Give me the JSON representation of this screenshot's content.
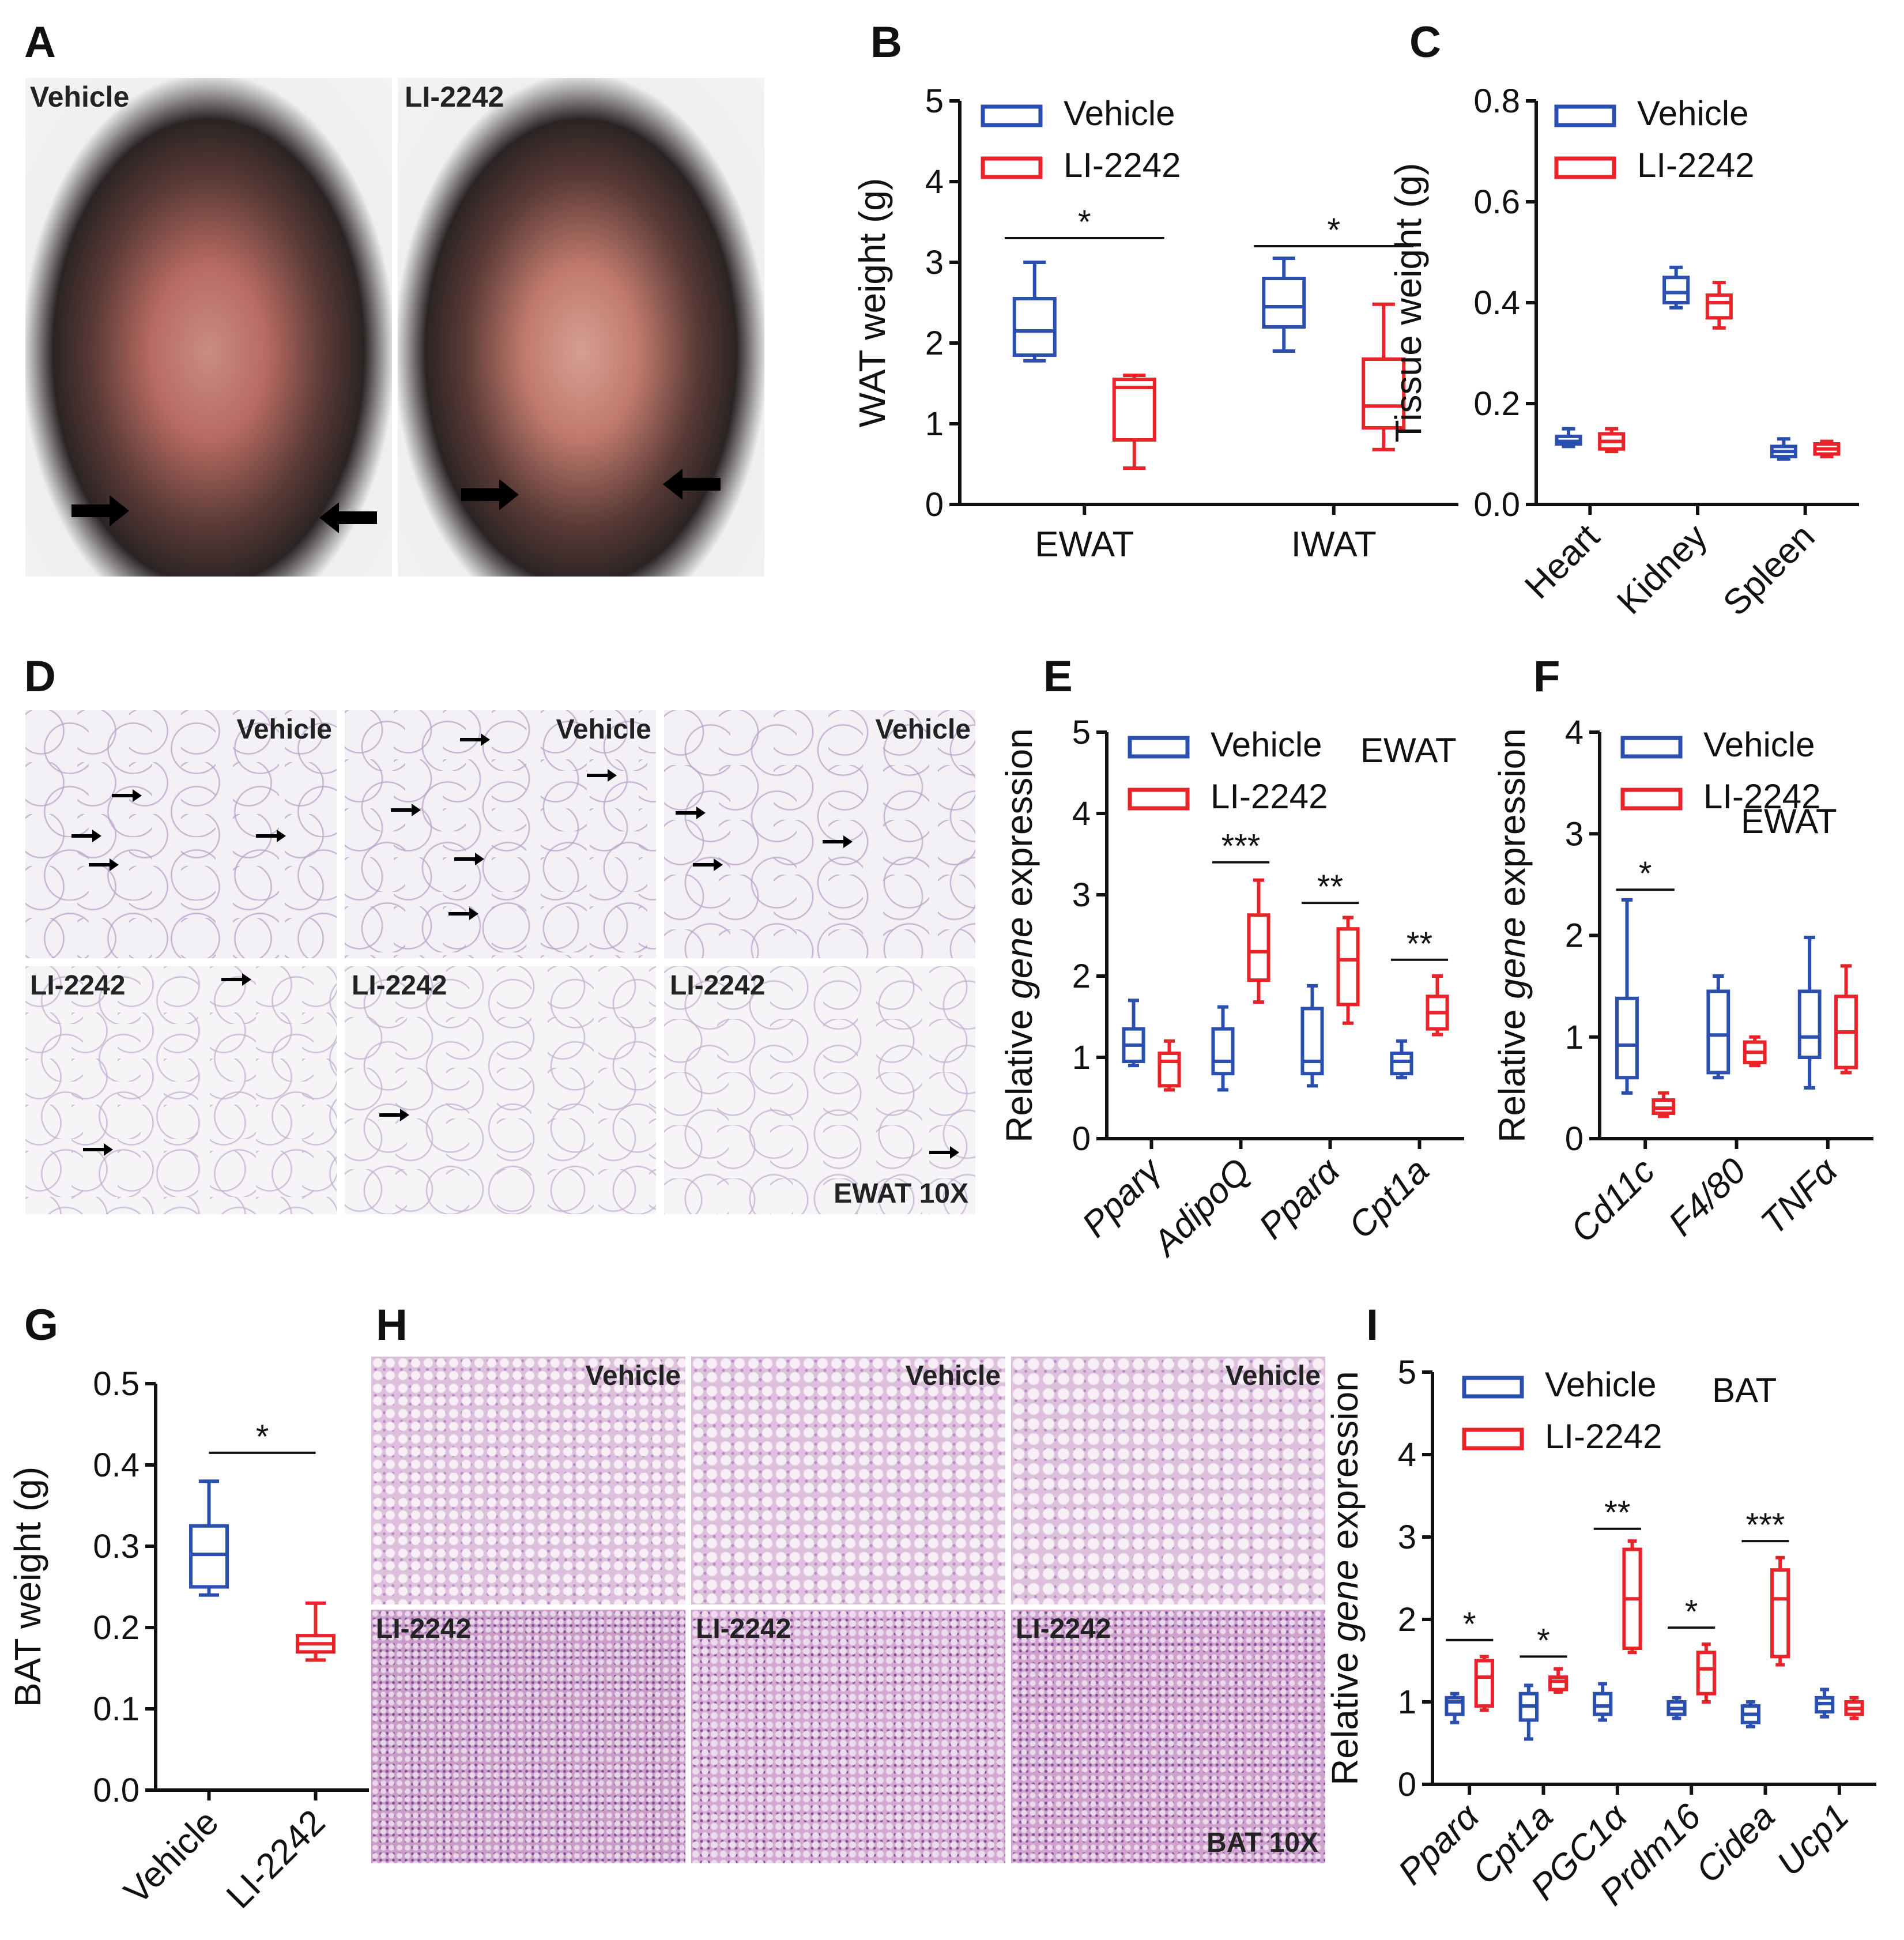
{
  "colors": {
    "vehicle": "#2a4fae",
    "li2242": "#e8232a",
    "axis": "#111111"
  },
  "panel_letters": {
    "a": "A",
    "b": "B",
    "c": "C",
    "d": "D",
    "e": "E",
    "f": "F",
    "g": "G",
    "h": "H",
    "i": "I"
  },
  "panelA": {
    "left_label": "Vehicle",
    "right_label": "LI-2242"
  },
  "panelD": {
    "top_labels": [
      "Vehicle",
      "Vehicle",
      "Vehicle"
    ],
    "bottom_labels": [
      "LI-2242",
      "LI-2242",
      "LI-2242"
    ],
    "scale_label": "EWAT 10X"
  },
  "panelH": {
    "top_labels": [
      "Vehicle",
      "Vehicle",
      "Vehicle"
    ],
    "bottom_labels": [
      "LI-2242",
      "LI-2242",
      "LI-2242"
    ],
    "scale_label": "BAT 10X"
  },
  "chart_data": [
    {
      "id": "B",
      "type": "boxplot",
      "ylabel": "WAT weight (g)",
      "ylim": [
        0,
        5
      ],
      "yticks": [
        "0",
        "1",
        "2",
        "3",
        "4",
        "5"
      ],
      "categories": [
        "EWAT",
        "IWAT"
      ],
      "legend": [
        "Vehicle",
        "LI-2242"
      ],
      "note": "",
      "series": [
        {
          "name": "Vehicle",
          "boxes": [
            [
              1.78,
              1.85,
              2.15,
              2.55,
              3.0
            ],
            [
              1.9,
              2.2,
              2.45,
              2.8,
              3.05
            ]
          ]
        },
        {
          "name": "LI-2242",
          "boxes": [
            [
              0.45,
              0.8,
              1.45,
              1.55,
              1.6
            ],
            [
              0.68,
              0.95,
              1.22,
              1.8,
              2.48
            ]
          ]
        }
      ],
      "sig": [
        {
          "cat": 0,
          "label": "*",
          "y": 3.3
        },
        {
          "cat": 1,
          "label": "*",
          "y": 3.2
        }
      ]
    },
    {
      "id": "C",
      "type": "boxplot",
      "ylabel": "Tissue weight (g)",
      "ylim": [
        0,
        0.8
      ],
      "yticks": [
        "0.0",
        "0.2",
        "0.4",
        "0.6",
        "0.8"
      ],
      "categories": [
        "Heart",
        "Kidney",
        "Spleen"
      ],
      "legend": [
        "Vehicle",
        "LI-2242"
      ],
      "note": "",
      "series": [
        {
          "name": "Vehicle",
          "boxes": [
            [
              0.115,
              0.12,
              0.125,
              0.135,
              0.15
            ],
            [
              0.39,
              0.4,
              0.42,
              0.45,
              0.47
            ],
            [
              0.09,
              0.095,
              0.105,
              0.115,
              0.13
            ]
          ]
        },
        {
          "name": "LI-2242",
          "boxes": [
            [
              0.105,
              0.11,
              0.125,
              0.14,
              0.15
            ],
            [
              0.35,
              0.37,
              0.4,
              0.415,
              0.44
            ],
            [
              0.095,
              0.1,
              0.11,
              0.12,
              0.125
            ]
          ]
        }
      ],
      "sig": []
    },
    {
      "id": "E",
      "type": "boxplot",
      "ylabel_parts": [
        "Relative ",
        "gene",
        " expression"
      ],
      "ylim": [
        0,
        5
      ],
      "yticks": [
        "0",
        "1",
        "2",
        "3",
        "4",
        "5"
      ],
      "categories": [
        "Pparγ",
        "AdipoQ",
        "Pparα",
        "Cpt1a"
      ],
      "italic_categories": true,
      "legend": [
        "Vehicle",
        "LI-2242"
      ],
      "note": "EWAT",
      "series": [
        {
          "name": "Vehicle",
          "boxes": [
            [
              0.9,
              0.95,
              1.15,
              1.35,
              1.7
            ],
            [
              0.6,
              0.8,
              0.95,
              1.35,
              1.62
            ],
            [
              0.65,
              0.8,
              0.95,
              1.6,
              1.88
            ],
            [
              0.75,
              0.8,
              0.95,
              1.05,
              1.2
            ]
          ]
        },
        {
          "name": "LI-2242",
          "boxes": [
            [
              0.6,
              0.65,
              0.95,
              1.05,
              1.2
            ],
            [
              1.68,
              1.95,
              2.3,
              2.75,
              3.18
            ],
            [
              1.42,
              1.65,
              2.2,
              2.58,
              2.72
            ],
            [
              1.28,
              1.35,
              1.55,
              1.75,
              2.0
            ]
          ]
        }
      ],
      "sig": [
        {
          "cat": 1,
          "label": "***",
          "y": 3.4
        },
        {
          "cat": 2,
          "label": "**",
          "y": 2.9
        },
        {
          "cat": 3,
          "label": "**",
          "y": 2.2
        }
      ]
    },
    {
      "id": "F",
      "type": "boxplot",
      "ylabel_parts": [
        "Relative ",
        "gene",
        " expression"
      ],
      "ylim": [
        0,
        4
      ],
      "yticks": [
        "0",
        "1",
        "2",
        "3",
        "4"
      ],
      "categories": [
        "Cd11c",
        "F4/80",
        "TNFα"
      ],
      "italic_categories": true,
      "legend": [
        "Vehicle",
        "LI-2242"
      ],
      "note": "EWAT",
      "series": [
        {
          "name": "Vehicle",
          "boxes": [
            [
              0.45,
              0.6,
              0.92,
              1.38,
              2.35
            ],
            [
              0.6,
              0.65,
              1.02,
              1.45,
              1.6
            ],
            [
              0.5,
              0.8,
              1.0,
              1.45,
              1.98
            ]
          ]
        },
        {
          "name": "LI-2242",
          "boxes": [
            [
              0.22,
              0.25,
              0.3,
              0.38,
              0.45
            ],
            [
              0.72,
              0.75,
              0.85,
              0.95,
              1.0
            ],
            [
              0.65,
              0.7,
              1.05,
              1.4,
              1.7
            ]
          ]
        }
      ],
      "sig": [
        {
          "cat": 0,
          "label": "*",
          "y": 2.45
        }
      ]
    },
    {
      "id": "G",
      "type": "boxplot",
      "ylabel": "BAT weight (g)",
      "ylim": [
        0,
        0.5
      ],
      "yticks": [
        "0.0",
        "0.1",
        "0.2",
        "0.3",
        "0.4",
        "0.5"
      ],
      "categories": [
        "Vehicle",
        "LI-2242"
      ],
      "legend": [],
      "note": "",
      "series": [
        {
          "name": "Vehicle",
          "boxes": [
            [
              0.24,
              0.25,
              0.29,
              0.325,
              0.38
            ],
            null
          ]
        },
        {
          "name": "LI-2242",
          "boxes": [
            null,
            [
              0.16,
              0.17,
              0.18,
              0.19,
              0.23
            ]
          ]
        }
      ],
      "single_per_cat": true,
      "sig": [
        {
          "cat": -1,
          "label": "*",
          "y": 0.415
        }
      ]
    },
    {
      "id": "I",
      "type": "boxplot",
      "ylabel_parts": [
        "Relative ",
        "gene",
        " expression"
      ],
      "ylim": [
        0,
        5
      ],
      "yticks": [
        "0",
        "1",
        "2",
        "3",
        "4",
        "5"
      ],
      "categories": [
        "Pparα",
        "Cpt1a",
        "PGC1α",
        "Prdm16",
        "Cidea",
        "Ucp1"
      ],
      "italic_categories": true,
      "legend": [
        "Vehicle",
        "LI-2242"
      ],
      "note": "BAT",
      "series": [
        {
          "name": "Vehicle",
          "boxes": [
            [
              0.75,
              0.85,
              1.0,
              1.05,
              1.1
            ],
            [
              0.55,
              0.78,
              0.95,
              1.1,
              1.2
            ],
            [
              0.78,
              0.85,
              0.95,
              1.1,
              1.22
            ],
            [
              0.8,
              0.85,
              0.92,
              1.0,
              1.05
            ],
            [
              0.7,
              0.75,
              0.85,
              0.95,
              1.0
            ],
            [
              0.82,
              0.88,
              0.98,
              1.05,
              1.15
            ]
          ]
        },
        {
          "name": "LI-2242",
          "boxes": [
            [
              0.9,
              0.95,
              1.3,
              1.5,
              1.55
            ],
            [
              1.12,
              1.15,
              1.25,
              1.3,
              1.4
            ],
            [
              1.6,
              1.65,
              2.25,
              2.85,
              2.95
            ],
            [
              1.0,
              1.1,
              1.4,
              1.6,
              1.7
            ],
            [
              1.45,
              1.55,
              2.25,
              2.6,
              2.75
            ],
            [
              0.8,
              0.85,
              0.92,
              1.0,
              1.05
            ]
          ]
        }
      ],
      "sig": [
        {
          "cat": 0,
          "label": "*",
          "y": 1.75
        },
        {
          "cat": 1,
          "label": "*",
          "y": 1.55
        },
        {
          "cat": 2,
          "label": "**",
          "y": 3.1
        },
        {
          "cat": 3,
          "label": "*",
          "y": 1.9
        },
        {
          "cat": 4,
          "label": "***",
          "y": 2.95
        }
      ]
    }
  ]
}
